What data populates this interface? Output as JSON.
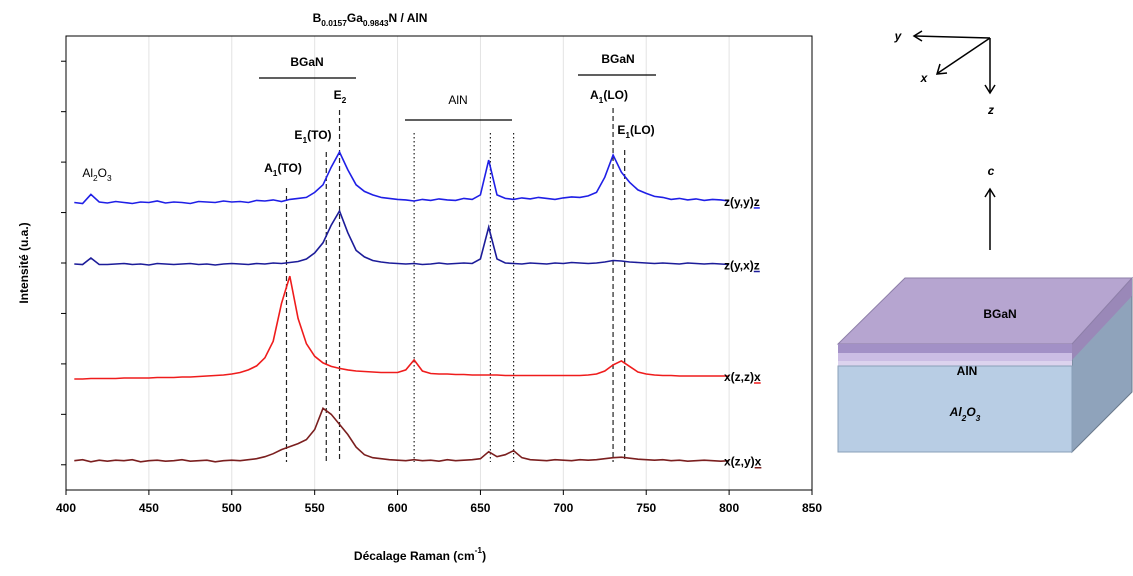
{
  "chart_data": {
    "type": "line",
    "title": [
      "B",
      "0.0157",
      "Ga",
      "0.9843",
      "N / AlN"
    ],
    "x_label": [
      "Décalage Raman (cm",
      "-1",
      ")"
    ],
    "y_label": "Intensité (u.a.)",
    "xlim": [
      400,
      850
    ],
    "xticks": [
      400,
      450,
      500,
      550,
      600,
      650,
      700,
      750,
      800,
      850
    ],
    "ylim": [
      0,
      9
    ],
    "yticks": [
      0.5,
      1.5,
      2.5,
      3.5,
      4.5,
      5.5,
      6.5,
      7.5,
      8.5
    ],
    "grid": true,
    "x": [
      405,
      410,
      415,
      420,
      425,
      430,
      435,
      440,
      445,
      450,
      455,
      460,
      465,
      470,
      475,
      480,
      485,
      490,
      495,
      500,
      505,
      510,
      515,
      520,
      525,
      530,
      535,
      540,
      545,
      550,
      555,
      560,
      565,
      570,
      575,
      580,
      585,
      590,
      595,
      600,
      605,
      610,
      615,
      620,
      625,
      630,
      635,
      640,
      645,
      650,
      655,
      660,
      665,
      670,
      675,
      680,
      685,
      690,
      695,
      700,
      705,
      710,
      715,
      720,
      725,
      730,
      735,
      740,
      745,
      750,
      755,
      760,
      765,
      770,
      775,
      780,
      785,
      790,
      795,
      800
    ],
    "series": [
      {
        "name": "z(y,y)z",
        "color": "#1f1fe6",
        "values": [
          5.7,
          5.68,
          5.86,
          5.71,
          5.69,
          5.72,
          5.7,
          5.68,
          5.71,
          5.7,
          5.73,
          5.69,
          5.71,
          5.7,
          5.68,
          5.72,
          5.71,
          5.7,
          5.73,
          5.71,
          5.72,
          5.7,
          5.74,
          5.73,
          5.75,
          5.72,
          5.76,
          5.78,
          5.8,
          5.9,
          6.05,
          6.4,
          6.7,
          6.35,
          6.05,
          5.92,
          5.85,
          5.8,
          5.78,
          5.76,
          5.75,
          5.73,
          5.76,
          5.74,
          5.77,
          5.75,
          5.74,
          5.78,
          5.76,
          5.85,
          6.54,
          5.85,
          5.78,
          5.76,
          5.79,
          5.77,
          5.8,
          5.78,
          5.76,
          5.79,
          5.81,
          5.8,
          5.83,
          5.9,
          6.2,
          6.64,
          6.3,
          6.1,
          5.95,
          5.88,
          5.82,
          5.8,
          5.76,
          5.78,
          5.75,
          5.77,
          5.74,
          5.76,
          5.75,
          5.73
        ]
      },
      {
        "name": "z(y,x)z",
        "color": "#1c1c99",
        "values": [
          4.48,
          4.47,
          4.6,
          4.47,
          4.47,
          4.48,
          4.49,
          4.47,
          4.48,
          4.46,
          4.49,
          4.48,
          4.47,
          4.48,
          4.49,
          4.47,
          4.48,
          4.46,
          4.48,
          4.49,
          4.48,
          4.47,
          4.49,
          4.48,
          4.5,
          4.49,
          4.51,
          4.53,
          4.58,
          4.7,
          4.9,
          5.25,
          5.53,
          5.1,
          4.75,
          4.62,
          4.55,
          4.52,
          4.5,
          4.49,
          4.48,
          4.49,
          4.47,
          4.48,
          4.5,
          4.48,
          4.49,
          4.5,
          4.49,
          4.58,
          5.21,
          4.58,
          4.5,
          4.49,
          4.48,
          4.5,
          4.49,
          4.48,
          4.5,
          4.49,
          4.51,
          4.5,
          4.49,
          4.5,
          4.52,
          4.55,
          4.54,
          4.52,
          4.51,
          4.5,
          4.49,
          4.5,
          4.49,
          4.48,
          4.5,
          4.49,
          4.48,
          4.49,
          4.48,
          4.47
        ]
      },
      {
        "name": "x(z,z)x",
        "color": "#ef1c1c",
        "values": [
          2.2,
          2.2,
          2.21,
          2.21,
          2.21,
          2.21,
          2.22,
          2.22,
          2.22,
          2.22,
          2.23,
          2.23,
          2.23,
          2.24,
          2.24,
          2.25,
          2.26,
          2.27,
          2.28,
          2.3,
          2.33,
          2.38,
          2.46,
          2.62,
          2.95,
          3.7,
          4.24,
          3.4,
          2.9,
          2.65,
          2.52,
          2.45,
          2.41,
          2.38,
          2.36,
          2.35,
          2.34,
          2.33,
          2.33,
          2.33,
          2.38,
          2.58,
          2.36,
          2.31,
          2.3,
          2.3,
          2.29,
          2.29,
          2.28,
          2.28,
          2.28,
          2.28,
          2.27,
          2.27,
          2.27,
          2.27,
          2.27,
          2.27,
          2.27,
          2.27,
          2.27,
          2.27,
          2.28,
          2.3,
          2.36,
          2.48,
          2.56,
          2.45,
          2.34,
          2.3,
          2.28,
          2.27,
          2.27,
          2.26,
          2.26,
          2.26,
          2.26,
          2.26,
          2.26,
          2.26
        ]
      },
      {
        "name": "x(z,y)x",
        "color": "#7b1f1f",
        "values": [
          0.58,
          0.6,
          0.56,
          0.59,
          0.57,
          0.59,
          0.58,
          0.6,
          0.56,
          0.58,
          0.59,
          0.57,
          0.58,
          0.6,
          0.57,
          0.58,
          0.59,
          0.56,
          0.58,
          0.59,
          0.58,
          0.6,
          0.62,
          0.66,
          0.72,
          0.8,
          0.86,
          0.92,
          1.0,
          1.2,
          1.62,
          1.5,
          1.3,
          1.1,
          0.85,
          0.7,
          0.64,
          0.62,
          0.6,
          0.59,
          0.58,
          0.6,
          0.58,
          0.59,
          0.57,
          0.6,
          0.58,
          0.59,
          0.6,
          0.62,
          0.76,
          0.66,
          0.7,
          0.78,
          0.64,
          0.6,
          0.59,
          0.58,
          0.6,
          0.59,
          0.58,
          0.6,
          0.59,
          0.6,
          0.62,
          0.64,
          0.65,
          0.63,
          0.61,
          0.6,
          0.59,
          0.6,
          0.58,
          0.59,
          0.57,
          0.58,
          0.59,
          0.58,
          0.57,
          0.58
        ]
      }
    ],
    "reference_lines": [
      {
        "x": 533,
        "style": "dashed"
      },
      {
        "x": 557,
        "style": "dashed"
      },
      {
        "x": 565,
        "style": "dashed"
      },
      {
        "x": 610,
        "style": "dotted"
      },
      {
        "x": 656,
        "style": "dotted"
      },
      {
        "x": 670,
        "style": "dotted"
      },
      {
        "x": 730,
        "style": "dashed"
      },
      {
        "x": 737,
        "style": "dashed"
      }
    ],
    "annotations": [
      [
        "Al",
        "2",
        "O",
        "3"
      ],
      [
        "A",
        "1",
        "(TO)"
      ],
      [
        "E",
        "1",
        "(TO)"
      ],
      [
        "E",
        "2"
      ],
      [
        "BGaN"
      ],
      [
        "AlN"
      ],
      [
        "BGaN"
      ],
      [
        "A",
        "1",
        "(LO)"
      ],
      [
        "E",
        "1",
        "(LO)"
      ]
    ]
  },
  "diagram": {
    "axis_labels": [
      "y",
      "x",
      "z",
      "c"
    ],
    "layers": [
      "BGaN",
      "AlN"
    ],
    "substrate": [
      "Al",
      "2",
      "O",
      "3"
    ]
  }
}
